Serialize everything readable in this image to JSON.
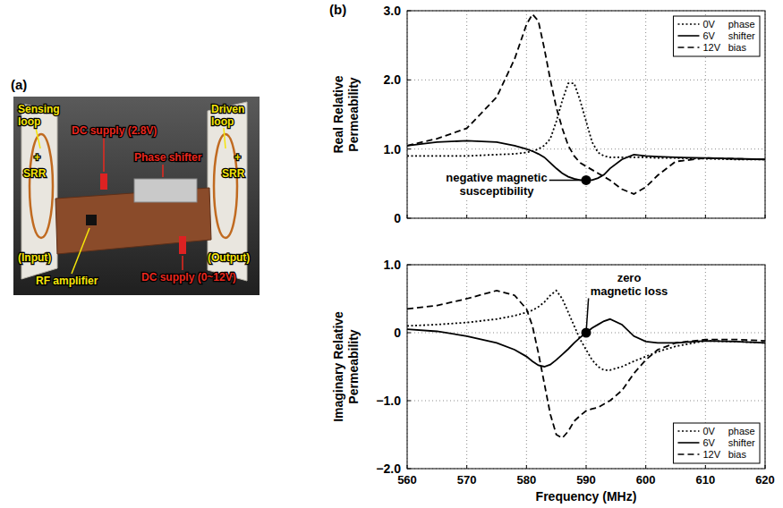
{
  "photo_panel": {
    "letter": "(a)",
    "labels": [
      "Sensing loop",
      "+",
      "SRR",
      "DC supply (2.8V)",
      "Phase shifter",
      "Driven loop",
      "+",
      "SRR",
      "(Input)",
      "RF amplifier",
      "DC supply (0~12V)",
      "(Output)"
    ]
  },
  "chart_panel": {
    "letter": "(b)"
  },
  "chart_data": [
    {
      "type": "line",
      "ylabel": "Real Relative Permeability",
      "x": [
        560,
        565,
        570,
        575,
        578,
        580,
        581,
        582,
        583,
        584,
        585,
        586,
        587,
        588,
        589,
        590,
        591,
        592,
        593,
        594,
        596,
        598,
        600,
        602,
        605,
        610,
        615,
        620
      ],
      "xlim": [
        560,
        620
      ],
      "xticks": [
        560,
        570,
        580,
        590,
        600,
        610,
        620
      ],
      "ylim": [
        0,
        3
      ],
      "yticks": [
        0,
        {
          "value": 1,
          "label": "1.0"
        },
        {
          "value": 2,
          "label": "2.0"
        },
        {
          "value": 3,
          "label": "3.0"
        }
      ],
      "grid": true,
      "tick_labels": "y",
      "legend": "upper right",
      "legend_title": "phase shifter bias",
      "series": [
        {
          "name": "0V",
          "color": "#000000",
          "line_style": "dotted",
          "values": [
            0.9,
            0.9,
            0.9,
            0.92,
            0.93,
            0.95,
            0.97,
            1.0,
            1.05,
            1.15,
            1.4,
            1.7,
            1.95,
            1.95,
            1.7,
            1.4,
            1.1,
            0.95,
            0.9,
            0.88,
            0.88,
            0.88,
            0.88,
            0.87,
            0.87,
            0.86,
            0.85,
            0.85
          ]
        },
        {
          "name": "6V",
          "color": "#000000",
          "line_style": "solid",
          "values": [
            1.05,
            1.1,
            1.12,
            1.1,
            1.05,
            1.0,
            0.97,
            0.93,
            0.88,
            0.8,
            0.72,
            0.65,
            0.6,
            0.57,
            0.55,
            0.55,
            0.55,
            0.58,
            0.63,
            0.72,
            0.85,
            0.92,
            0.9,
            0.89,
            0.88,
            0.87,
            0.86,
            0.85
          ]
        },
        {
          "name": "12V",
          "color": "#000000",
          "line_style": "dashed",
          "values": [
            1.05,
            1.15,
            1.3,
            1.75,
            2.3,
            2.8,
            2.95,
            2.85,
            2.45,
            2.0,
            1.6,
            1.3,
            1.05,
            0.9,
            0.8,
            0.75,
            0.7,
            0.65,
            0.6,
            0.55,
            0.42,
            0.35,
            0.45,
            0.62,
            0.82,
            0.87,
            0.86,
            0.85
          ]
        }
      ],
      "annotations": [
        {
          "text": "negative magnetic susceptibility",
          "x": 590,
          "y": 0.55
        }
      ]
    },
    {
      "type": "line",
      "ylabel": "Imaginary Relative Permeability",
      "xlabel": "Frequency (MHz)",
      "x": [
        560,
        565,
        570,
        575,
        578,
        580,
        581,
        582,
        583,
        584,
        585,
        586,
        587,
        588,
        589,
        590,
        591,
        592,
        593,
        594,
        596,
        598,
        600,
        602,
        605,
        610,
        615,
        620
      ],
      "xlim": [
        560,
        620
      ],
      "xticks": [
        560,
        570,
        580,
        590,
        600,
        610,
        620
      ],
      "ylim": [
        -2,
        1
      ],
      "yticks": [
        {
          "value": -2,
          "label": "−2.0"
        },
        {
          "value": -1,
          "label": "−1.0"
        },
        0,
        {
          "value": 1,
          "label": "1.0"
        }
      ],
      "grid": true,
      "legend": "lower right",
      "legend_title": "phase shifter bias",
      "series": [
        {
          "name": "0V",
          "color": "#000000",
          "line_style": "dotted",
          "values": [
            0.1,
            0.12,
            0.15,
            0.2,
            0.25,
            0.3,
            0.33,
            0.38,
            0.45,
            0.55,
            0.62,
            0.5,
            0.3,
            0.1,
            -0.1,
            -0.25,
            -0.4,
            -0.5,
            -0.55,
            -0.55,
            -0.5,
            -0.42,
            -0.35,
            -0.28,
            -0.2,
            -0.12,
            -0.13,
            -0.15
          ]
        },
        {
          "name": "6V",
          "color": "#000000",
          "line_style": "solid",
          "values": [
            0.05,
            0.02,
            -0.05,
            -0.15,
            -0.25,
            -0.35,
            -0.42,
            -0.48,
            -0.5,
            -0.47,
            -0.4,
            -0.32,
            -0.24,
            -0.15,
            -0.07,
            0,
            0.07,
            0.12,
            0.17,
            0.2,
            0.12,
            -0.05,
            -0.13,
            -0.15,
            -0.15,
            -0.12,
            -0.13,
            -0.15
          ]
        },
        {
          "name": "12V",
          "color": "#000000",
          "line_style": "dashed",
          "values": [
            0.35,
            0.4,
            0.5,
            0.62,
            0.55,
            0.35,
            0.1,
            -0.3,
            -0.75,
            -1.2,
            -1.5,
            -1.55,
            -1.45,
            -1.3,
            -1.22,
            -1.15,
            -1.12,
            -1.1,
            -1.05,
            -1.0,
            -0.85,
            -0.6,
            -0.4,
            -0.25,
            -0.15,
            -0.1,
            -0.1,
            -0.12
          ]
        }
      ],
      "annotations": [
        {
          "text": "zero magnetic loss",
          "x": 590,
          "y": 0
        }
      ]
    }
  ]
}
